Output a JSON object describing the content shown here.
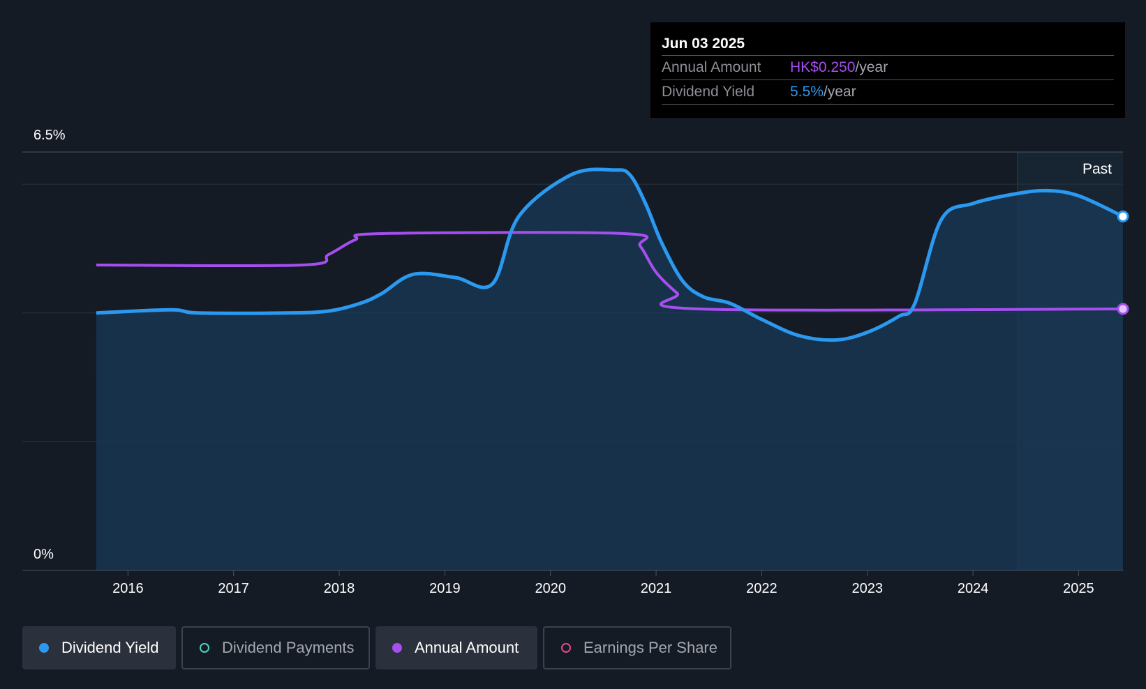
{
  "tooltip": {
    "date": "Jun 03 2025",
    "amount_label": "Annual Amount",
    "amount_value": "HK$0.250",
    "amount_unit": "/year",
    "yield_label": "Dividend Yield",
    "yield_value": "5.5%",
    "yield_unit": "/year"
  },
  "past_label": "Past",
  "legend": [
    {
      "label": "Dividend Yield",
      "color": "#2b99f0",
      "active": true,
      "filled": true
    },
    {
      "label": "Dividend Payments",
      "color": "#4fd1c5",
      "active": false,
      "filled": false
    },
    {
      "label": "Annual Amount",
      "color": "#a64ff0",
      "active": true,
      "filled": true
    },
    {
      "label": "Earnings Per Share",
      "color": "#e24b8a",
      "active": false,
      "filled": false
    }
  ],
  "colors": {
    "background": "#151b25",
    "yield": "#2b99f0",
    "amount": "#a64ff0",
    "past_region": "#1a2d40"
  },
  "chart_data": {
    "type": "line",
    "title": "",
    "xlabel": "",
    "ylabel": "",
    "ylim": [
      0,
      6.5
    ],
    "ytick_labels": [
      "6.5%",
      "0%"
    ],
    "xlim": [
      2015.0,
      2025.42
    ],
    "xticks": [
      "2016",
      "2017",
      "2018",
      "2019",
      "2020",
      "2021",
      "2022",
      "2023",
      "2024",
      "2025"
    ],
    "past_start": 2024.42,
    "series": [
      {
        "name": "Dividend Yield",
        "x": [
          2015.7,
          2016.4,
          2016.67,
          2017.5,
          2017.9,
          2018.2,
          2018.4,
          2018.7,
          2019.1,
          2019.45,
          2019.7,
          2020.2,
          2020.6,
          2020.75,
          2020.9,
          2021.05,
          2021.25,
          2021.45,
          2021.7,
          2022.0,
          2022.35,
          2022.7,
          2023.0,
          2023.3,
          2023.45,
          2023.7,
          2024.0,
          2024.4,
          2024.7,
          2025.0,
          2025.42
        ],
        "y": [
          4.0,
          4.05,
          4.0,
          4.0,
          4.03,
          4.15,
          4.3,
          4.6,
          4.55,
          4.45,
          5.5,
          6.15,
          6.22,
          6.15,
          5.7,
          5.1,
          4.5,
          4.25,
          4.15,
          3.9,
          3.65,
          3.58,
          3.7,
          3.95,
          4.15,
          5.45,
          5.7,
          5.85,
          5.9,
          5.82,
          5.5
        ]
      },
      {
        "name": "Annual Amount",
        "x": [
          2015.7,
          2017.65,
          2017.9,
          2018.15,
          2018.4,
          2020.7,
          2020.85,
          2021.0,
          2021.2,
          2021.4,
          2025.42
        ],
        "y": [
          0.292,
          0.292,
          0.302,
          0.316,
          0.322,
          0.322,
          0.31,
          0.285,
          0.265,
          0.25,
          0.25
        ]
      }
    ]
  }
}
